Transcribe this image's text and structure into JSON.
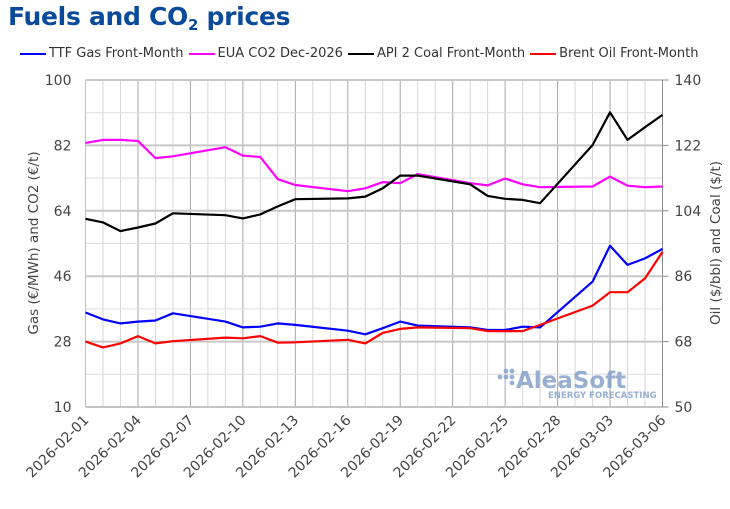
{
  "title": {
    "main": "Fuels and CO",
    "subscript": "2",
    "suffix": " prices"
  },
  "watermark": {
    "brand": "AleaSoft",
    "tagline": "ENERGY FORECASTING"
  },
  "chart_data": {
    "type": "line",
    "title": "Fuels and CO2 prices",
    "xlabel": "",
    "ylabel": "Gas (€/MWh) and CO2 (€/t)",
    "y2label": "Oil ($/bbl) and Coal ($/t)",
    "ylim": [
      10,
      100
    ],
    "y2lim": [
      50,
      140
    ],
    "yticks": [
      10,
      28,
      46,
      64,
      82,
      100
    ],
    "y2ticks": [
      50,
      68,
      86,
      104,
      122,
      140
    ],
    "xlim": [
      "2026-02-01",
      "2026-03-06"
    ],
    "xtick_labels": [
      "2026-02-01",
      "2026-02-04",
      "2026-02-07",
      "2026-02-10",
      "2026-02-13",
      "2026-02-16",
      "2026-02-19",
      "2026-02-22",
      "2026-02-25",
      "2026-02-28",
      "2026-03-03",
      "2026-03-06"
    ],
    "grid": true,
    "legend_position": "top",
    "x": [
      "2026-02-01",
      "2026-02-02",
      "2026-02-03",
      "2026-02-04",
      "2026-02-05",
      "2026-02-06",
      "2026-02-09",
      "2026-02-10",
      "2026-02-11",
      "2026-02-12",
      "2026-02-13",
      "2026-02-16",
      "2026-02-17",
      "2026-02-18",
      "2026-02-19",
      "2026-02-20",
      "2026-02-23",
      "2026-02-24",
      "2026-02-25",
      "2026-02-26",
      "2026-02-27",
      "2026-03-02",
      "2026-03-03",
      "2026-03-04",
      "2026-03-05",
      "2026-03-06"
    ],
    "series": [
      {
        "name": "TTF Gas Front-Month",
        "axis": "left",
        "color": "#0000ff",
        "values": [
          36.0,
          34.1,
          33.0,
          33.5,
          33.8,
          35.8,
          33.5,
          31.9,
          32.1,
          33.0,
          32.6,
          31.0,
          30.0,
          31.7,
          33.5,
          32.4,
          31.9,
          31.2,
          31.2,
          32.1,
          31.9,
          44.5,
          54.4,
          49.1,
          50.9,
          53.5
        ]
      },
      {
        "name": "EUA CO2 Dec-2026",
        "axis": "left",
        "color": "#ff00ff",
        "values": [
          82.7,
          83.5,
          83.5,
          83.2,
          78.5,
          79.0,
          81.5,
          79.2,
          78.8,
          72.7,
          71.1,
          69.4,
          70.2,
          71.9,
          71.6,
          74.1,
          71.6,
          71.0,
          72.9,
          71.3,
          70.5,
          70.7,
          73.4,
          70.9,
          70.5,
          70.7
        ]
      },
      {
        "name": "API 2 Coal Front-Month",
        "axis": "right",
        "color": "#000000",
        "values": [
          101.8,
          100.8,
          98.4,
          99.4,
          100.5,
          103.3,
          102.8,
          101.9,
          103.0,
          105.2,
          107.2,
          107.4,
          107.9,
          110.2,
          113.7,
          113.7,
          111.3,
          108.1,
          107.3,
          107.0,
          106.1,
          122.1,
          131.1,
          123.5,
          127.0,
          130.4
        ]
      },
      {
        "name": "Brent Oil Front-Month",
        "axis": "right",
        "color": "#ff0000",
        "values": [
          68.0,
          66.4,
          67.5,
          69.5,
          67.5,
          68.1,
          69.1,
          68.9,
          69.5,
          67.7,
          67.8,
          68.5,
          67.5,
          70.4,
          71.5,
          71.9,
          71.7,
          70.9,
          70.9,
          70.9,
          72.6,
          77.9,
          81.6,
          81.6,
          85.4,
          92.7
        ]
      }
    ]
  }
}
